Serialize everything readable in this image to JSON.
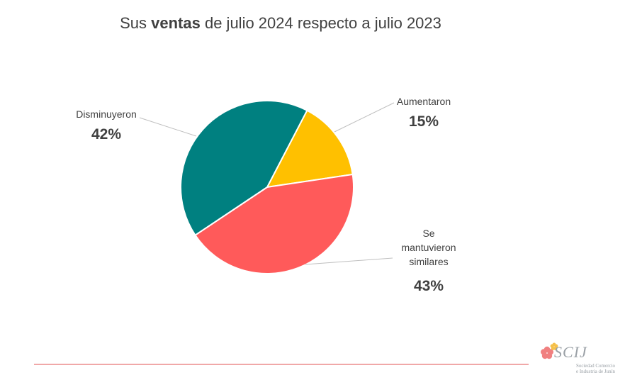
{
  "title": {
    "prefix": "Sus ",
    "bold": "ventas",
    "suffix": " de julio 2024 respecto a julio 2023"
  },
  "chart_data": {
    "type": "pie",
    "title": "Sus ventas de julio 2024 respecto a julio 2023",
    "slices": [
      {
        "label_lines": [
          "Aumentaron"
        ],
        "value": 15,
        "display": "15%",
        "color": "#FFC000"
      },
      {
        "label_lines": [
          "Se",
          "mantuvieron",
          "similares"
        ],
        "value": 43,
        "display": "43%",
        "color": "#FF5A5A"
      },
      {
        "label_lines": [
          "Disminuyeron"
        ],
        "value": 42,
        "display": "42%",
        "color": "#008080"
      }
    ],
    "legend": "none"
  },
  "logo": {
    "text": "SCIJ",
    "subtitle_lines": [
      "Sociedad Comercio",
      "e Industria de Junín"
    ],
    "flower_colors": [
      "#F08080",
      "#F5C04A"
    ]
  }
}
